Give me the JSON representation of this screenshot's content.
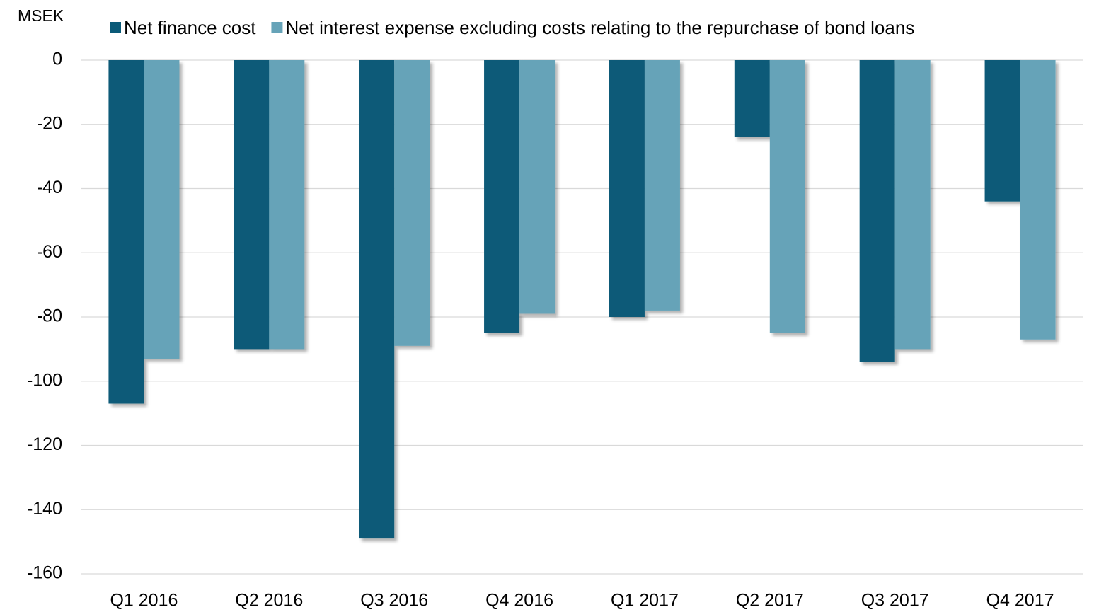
{
  "chart_data": {
    "type": "bar",
    "y_label": "MSEK",
    "categories": [
      "Q1 2016",
      "Q2 2016",
      "Q3 2016",
      "Q4 2016",
      "Q1 2017",
      "Q2 2017",
      "Q3 2017",
      "Q4 2017"
    ],
    "series": [
      {
        "name": "Net finance cost",
        "color": "#0a5a78",
        "values": [
          -107,
          -90,
          -149,
          -85,
          -80,
          -24,
          -94,
          -44
        ]
      },
      {
        "name": "Net interest expense excluding costs relating to the repurchase of bond loans",
        "color": "#66a3b8",
        "values": [
          -93,
          -90,
          -89,
          -79,
          -78,
          -85,
          -90,
          -87
        ]
      }
    ],
    "ylim": [
      -160,
      0
    ],
    "yticks": [
      0,
      -20,
      -40,
      -60,
      -80,
      -100,
      -120,
      -140,
      -160
    ],
    "grid": true,
    "legend": "top"
  }
}
